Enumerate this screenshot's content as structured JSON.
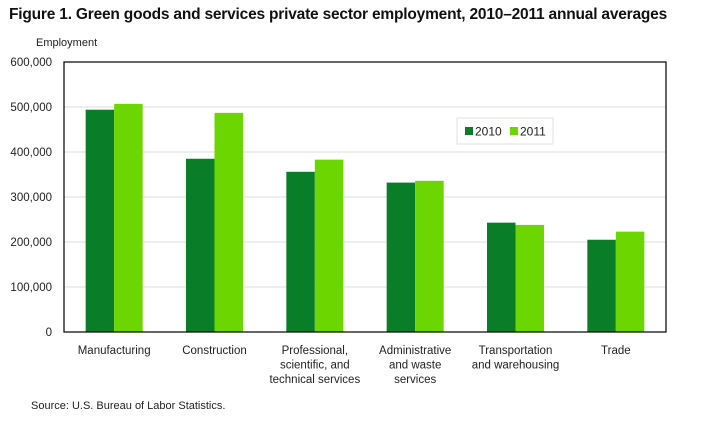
{
  "chart_data": {
    "type": "bar",
    "title": "Figure 1. Green goods and services private sector employment, 2010–2011 annual averages",
    "xlabel": "",
    "ylabel": "Employment",
    "ylim": [
      0,
      600000
    ],
    "yticks": [
      0,
      100000,
      200000,
      300000,
      400000,
      500000,
      600000
    ],
    "ytick_labels": [
      "0",
      "100,000",
      "200,000",
      "300,000",
      "400,000",
      "500,000",
      "600,000"
    ],
    "grid": true,
    "legend_position": "upper-right-inside",
    "categories": [
      [
        "Manufacturing"
      ],
      [
        "Construction"
      ],
      [
        "Professional,",
        "scientific, and",
        "technical services"
      ],
      [
        "Administrative",
        "and waste",
        "services"
      ],
      [
        "Transportation",
        "and warehousing"
      ],
      [
        "Trade"
      ]
    ],
    "series": [
      {
        "name": "2010",
        "color": "#0a7d28",
        "values": [
          494000,
          385000,
          356000,
          332000,
          243000,
          205000
        ]
      },
      {
        "name": "2011",
        "color": "#6cd600",
        "values": [
          507000,
          487000,
          383000,
          336000,
          238000,
          223000
        ]
      }
    ],
    "source": "Source:  U.S. Bureau  of Labor Statistics."
  }
}
